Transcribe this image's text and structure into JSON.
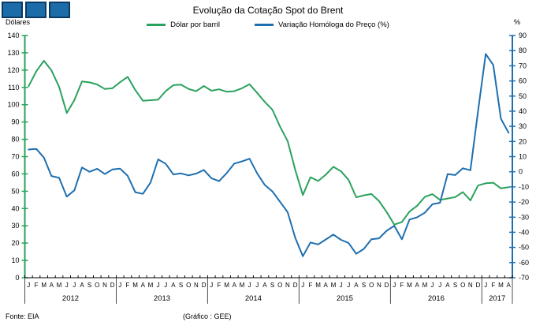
{
  "header": {
    "title": "Evolução da Cotação Spot do Brent",
    "left_axis_unit": "Dólares",
    "right_axis_unit": "%"
  },
  "logo": {
    "squares": 3,
    "fill": "#1b6ca8",
    "border": "#0d3a63"
  },
  "footer": {
    "source": "Fonte: EIA",
    "credit": "(Gráfico : GEE)"
  },
  "chart_data": {
    "type": "line",
    "title": "Evolução da Cotação Spot do Brent",
    "grid": false,
    "legend_position": "top",
    "month_letters": [
      "J",
      "F",
      "M",
      "A",
      "M",
      "J",
      "J",
      "A",
      "S",
      "O",
      "N",
      "D"
    ],
    "years": [
      {
        "label": "2012",
        "months": 12
      },
      {
        "label": "2013",
        "months": 12
      },
      {
        "label": "2014",
        "months": 12
      },
      {
        "label": "2015",
        "months": 12
      },
      {
        "label": "2016",
        "months": 12
      },
      {
        "label": "2017",
        "months": 4
      }
    ],
    "left_axis": {
      "label": "Dólares",
      "min": 0,
      "max": 140,
      "step": 10
    },
    "right_axis": {
      "label": "%",
      "min": -70,
      "max": 90,
      "step": 10
    },
    "axis_colors": {
      "bottom": "#000000",
      "separator": "#4d4d4d"
    },
    "series": [
      {
        "name": "Dólar por barril",
        "axis": "left",
        "color": "#2aa25e",
        "values": [
          110.7,
          119.3,
          125.4,
          119.8,
          110.3,
          95.2,
          102.6,
          113.4,
          112.9,
          111.7,
          109.1,
          109.5,
          113.0,
          116.1,
          108.5,
          102.3,
          102.6,
          102.9,
          107.9,
          111.3,
          111.6,
          109.1,
          107.8,
          110.8,
          108.1,
          108.9,
          107.5,
          107.8,
          109.5,
          111.8,
          106.8,
          101.6,
          97.1,
          87.4,
          79.0,
          62.3,
          47.8,
          58.1,
          55.9,
          59.5,
          64.1,
          61.5,
          56.6,
          46.5,
          47.6,
          48.4,
          44.3,
          38.0,
          30.7,
          32.2,
          38.2,
          41.6,
          46.7,
          48.3,
          45.0,
          45.8,
          46.6,
          49.5,
          44.7,
          53.3,
          54.6,
          54.9,
          51.6,
          52.3
        ]
      },
      {
        "name": "Variação Homóloga do Preço (%)",
        "axis": "right",
        "color": "#1e6fb0",
        "values": [
          14.7,
          15.1,
          9.4,
          -2.8,
          -4.0,
          -16.4,
          -12.3,
          2.8,
          0.0,
          2.0,
          -1.5,
          1.5,
          2.1,
          -2.7,
          -13.5,
          -14.6,
          -7.1,
          8.2,
          5.2,
          -1.8,
          -1.1,
          -2.4,
          -1.2,
          1.2,
          -4.3,
          -6.2,
          -0.9,
          5.4,
          6.8,
          8.6,
          -1.1,
          -8.7,
          -13.0,
          -19.8,
          -26.7,
          -43.7,
          -55.8,
          -46.7,
          -48.0,
          -44.8,
          -41.5,
          -45.0,
          -47.0,
          -54.2,
          -51.0,
          -44.6,
          -44.0,
          -39.0,
          -35.7,
          -44.6,
          -31.6,
          -30.1,
          -27.1,
          -21.5,
          -20.5,
          -1.5,
          -2.2,
          2.3,
          1.0,
          40.2,
          77.8,
          70.5,
          35.0,
          25.8
        ]
      }
    ]
  }
}
